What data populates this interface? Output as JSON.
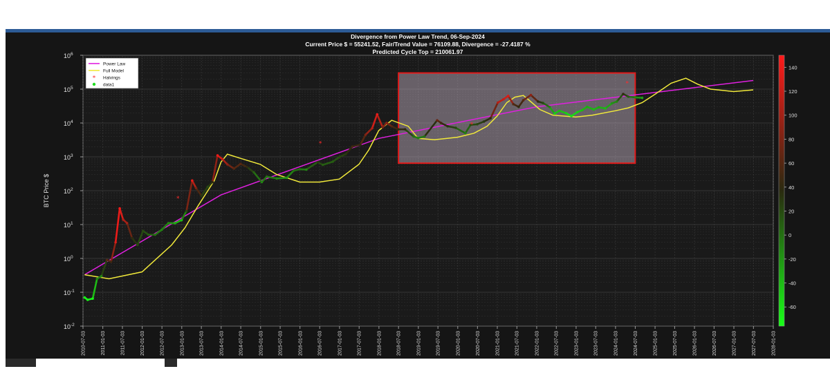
{
  "chart_data": {
    "type": "scatter",
    "title_lines": [
      "Divergence from Power Law Trend, 06-Sep-2024",
      "Current Price $ = 55241.52, Fair/Trend Value = 76109.88, Divergence = -27.4187 %",
      "Predicted Cycle Top = 210061.97"
    ],
    "ylabel": "BTC Price $",
    "y_scale": "log",
    "ylim": [
      0.01,
      1000000
    ],
    "y_ticks": [
      {
        "base": "10",
        "exp": "-2"
      },
      {
        "base": "10",
        "exp": "-1"
      },
      {
        "base": "10",
        "exp": "0"
      },
      {
        "base": "10",
        "exp": "1"
      },
      {
        "base": "10",
        "exp": "2"
      },
      {
        "base": "10",
        "exp": "3"
      },
      {
        "base": "10",
        "exp": "4"
      },
      {
        "base": "10",
        "exp": "5"
      },
      {
        "base": "10",
        "exp": "6"
      }
    ],
    "x_ticks": [
      "2010-07-03",
      "2011-01-03",
      "2011-07-03",
      "2012-01-03",
      "2012-07-03",
      "2013-01-03",
      "2013-07-03",
      "2014-01-03",
      "2014-07-03",
      "2015-01-03",
      "2015-07-03",
      "2016-01-03",
      "2016-07-03",
      "2017-01-03",
      "2017-07-03",
      "2018-01-03",
      "2018-07-03",
      "2019-01-03",
      "2019-07-03",
      "2020-01-03",
      "2020-07-03",
      "2021-01-03",
      "2021-07-03",
      "2022-01-03",
      "2022-07-03",
      "2023-01-03",
      "2023-07-03",
      "2024-01-03",
      "2024-07-03",
      "2025-01-03",
      "2025-07-03",
      "2026-01-03",
      "2026-07-03",
      "2027-01-03",
      "2027-07-03",
      "2028-01-03"
    ],
    "legend": {
      "placement": "top-left",
      "entries": [
        {
          "label": "Power Law",
          "color": "#e020e0",
          "marker": "line"
        },
        {
          "label": "Full Model",
          "color": "#f2ea3a",
          "marker": "line"
        },
        {
          "label": "Halvings",
          "color": "#ff2a2a",
          "marker": "star"
        },
        {
          "label": "data1",
          "color": "#22dd22",
          "marker": "dot"
        }
      ]
    },
    "colorbar": {
      "ticks": [
        "140",
        "120",
        "100",
        "80",
        "60",
        "40",
        "20",
        "0",
        "-20",
        "-40",
        "-60"
      ],
      "range": [
        -76,
        150
      ],
      "colors": [
        "#ff1a1a",
        "#2a2a10",
        "#18ff18"
      ]
    },
    "grid": true,
    "highlight_box": {
      "x_from": "2018-07-03",
      "x_to": "2024-07-03",
      "y_from": 650,
      "y_to": 300000,
      "color": "#e31a1a"
    },
    "series": [
      {
        "name": "Power Law",
        "type": "line",
        "color": "#e020e0",
        "x": [
          "2010-07-18",
          "2014-01-01",
          "2018-01-01",
          "2022-01-01",
          "2027-07-01"
        ],
        "y": [
          0.33,
          75,
          3500,
          30000,
          180000
        ]
      },
      {
        "name": "Full Model",
        "type": "line",
        "color": "#f2ea3a",
        "x": [
          "2010-07-18",
          "2011-03-01",
          "2012-01-01",
          "2012-10-01",
          "2013-02-01",
          "2013-06-01",
          "2013-09-01",
          "2013-11-01",
          "2014-01-01",
          "2014-03-01",
          "2014-07-01",
          "2015-01-01",
          "2015-06-01",
          "2016-01-01",
          "2016-07-01",
          "2017-01-01",
          "2017-07-01",
          "2017-10-01",
          "2018-01-01",
          "2018-05-01",
          "2018-10-01",
          "2019-01-01",
          "2019-06-01",
          "2020-01-01",
          "2020-06-01",
          "2020-10-01",
          "2021-01-01",
          "2021-04-01",
          "2021-06-15",
          "2021-09-01",
          "2021-11-01",
          "2022-02-01",
          "2022-06-01",
          "2023-01-01",
          "2023-06-01",
          "2024-01-01",
          "2024-05-01",
          "2024-09-06",
          "2025-01-01",
          "2025-06-01",
          "2025-10-15",
          "2026-02-01",
          "2026-06-01",
          "2027-01-01",
          "2027-07-01"
        ],
        "y": [
          0.33,
          0.25,
          0.4,
          2.5,
          8,
          35,
          100,
          200,
          700,
          1200,
          900,
          600,
          300,
          180,
          180,
          220,
          600,
          1600,
          6000,
          12000,
          8000,
          3500,
          3200,
          3800,
          5000,
          8000,
          16000,
          40000,
          58000,
          65000,
          45000,
          25000,
          17000,
          15000,
          17000,
          23000,
          28000,
          40000,
          70000,
          150000,
          210000,
          140000,
          100000,
          85000,
          95000
        ]
      },
      {
        "name": "Halvings",
        "type": "scatter",
        "color": "#ff2a2a",
        "x": [
          "2012-11-28",
          "2016-07-09",
          "2020-05-11",
          "2024-04-20"
        ],
        "y": [
          60,
          2500,
          9000,
          150000
        ]
      },
      {
        "name": "data1",
        "type": "scatter",
        "x": [
          "2010-07-18",
          "2010-08-15",
          "2010-10-01",
          "2010-11-10",
          "2010-12-20",
          "2011-02-10",
          "2011-03-20",
          "2011-05-01",
          "2011-06-08",
          "2011-07-10",
          "2011-08-15",
          "2011-10-01",
          "2011-11-20",
          "2012-01-10",
          "2012-03-01",
          "2012-05-01",
          "2012-07-01",
          "2012-09-01",
          "2012-11-01",
          "2013-01-01",
          "2013-02-15",
          "2013-04-09",
          "2013-05-15",
          "2013-07-05",
          "2013-09-01",
          "2013-10-15",
          "2013-11-30",
          "2014-01-15",
          "2014-03-01",
          "2014-05-01",
          "2014-07-01",
          "2014-09-01",
          "2014-11-01",
          "2015-01-14",
          "2015-03-01",
          "2015-06-01",
          "2015-09-01",
          "2015-11-05",
          "2016-01-01",
          "2016-03-01",
          "2016-06-15",
          "2016-08-01",
          "2016-11-01",
          "2017-01-05",
          "2017-03-01",
          "2017-05-01",
          "2017-07-15",
          "2017-09-01",
          "2017-11-01",
          "2017-12-17",
          "2018-02-06",
          "2018-03-15",
          "2018-05-01",
          "2018-07-01",
          "2018-09-01",
          "2018-11-20",
          "2019-01-01",
          "2019-03-01",
          "2019-06-26",
          "2019-08-01",
          "2019-10-01",
          "2019-12-15",
          "2020-03-13",
          "2020-05-01",
          "2020-07-01",
          "2020-09-01",
          "2020-11-01",
          "2021-01-08",
          "2021-03-01",
          "2021-04-14",
          "2021-06-01",
          "2021-07-20",
          "2021-09-01",
          "2021-11-10",
          "2022-01-15",
          "2022-03-01",
          "2022-05-01",
          "2022-06-18",
          "2022-08-01",
          "2022-10-01",
          "2022-11-21",
          "2023-01-15",
          "2023-03-01",
          "2023-04-15",
          "2023-06-15",
          "2023-08-01",
          "2023-10-01",
          "2023-12-01",
          "2024-01-15",
          "2024-03-14",
          "2024-05-01",
          "2024-07-05",
          "2024-09-06"
        ],
        "y": [
          0.07,
          0.06,
          0.065,
          0.25,
          0.3,
          0.9,
          0.8,
          3,
          30,
          14,
          11,
          4,
          2.5,
          6.5,
          5,
          5,
          7,
          11,
          11,
          13.5,
          25,
          200,
          120,
          70,
          130,
          180,
          1100,
          850,
          600,
          450,
          620,
          500,
          350,
          180,
          260,
          230,
          240,
          390,
          430,
          420,
          700,
          580,
          720,
          1000,
          1200,
          2000,
          2300,
          4500,
          7000,
          18000,
          7500,
          10000,
          8000,
          6500,
          6500,
          4000,
          3600,
          4000,
          12000,
          10000,
          8000,
          7200,
          5000,
          8800,
          9200,
          11000,
          13800,
          40000,
          50000,
          63000,
          36000,
          30000,
          47000,
          67000,
          43000,
          39000,
          30000,
          19000,
          23000,
          19500,
          16000,
          21000,
          24000,
          30000,
          25000,
          29000,
          27000,
          38000,
          43000,
          72000,
          60000,
          57000,
          55241
        ],
        "divergence": [
          -70,
          -75,
          -70,
          -10,
          -10,
          60,
          50,
          130,
          150,
          110,
          100,
          40,
          20,
          20,
          10,
          0,
          -10,
          -10,
          -30,
          -40,
          20,
          140,
          80,
          30,
          20,
          40,
          140,
          120,
          90,
          60,
          60,
          40,
          10,
          -10,
          0,
          -10,
          -20,
          0,
          0,
          -10,
          30,
          10,
          10,
          20,
          30,
          50,
          40,
          80,
          110,
          140,
          80,
          90,
          60,
          40,
          40,
          0,
          -10,
          0,
          70,
          50,
          30,
          20,
          -10,
          20,
          20,
          30,
          40,
          110,
          120,
          130,
          60,
          40,
          60,
          90,
          40,
          20,
          -10,
          -50,
          -40,
          -50,
          -60,
          -50,
          -40,
          -30,
          -40,
          -30,
          -40,
          -20,
          -10,
          40,
          10,
          -10,
          -27
        ]
      }
    ]
  }
}
